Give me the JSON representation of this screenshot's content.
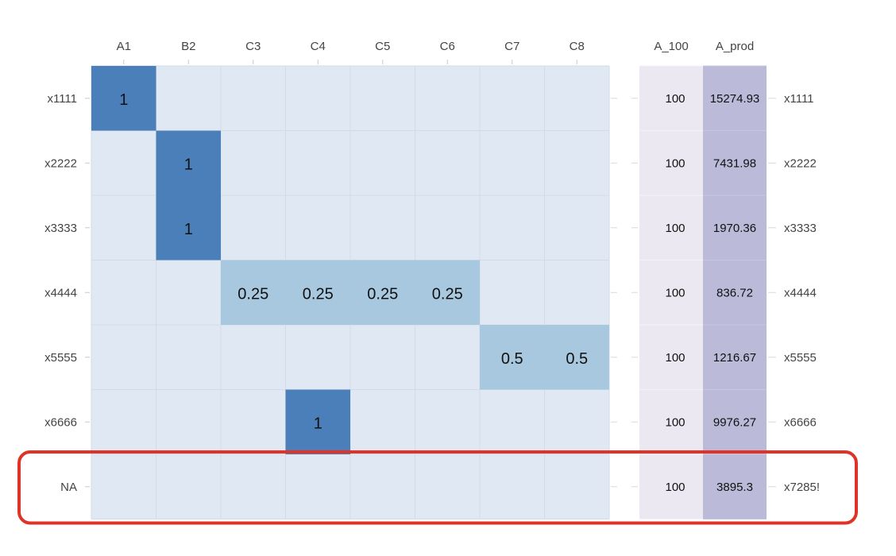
{
  "chart_data": {
    "type": "heatmap",
    "columns": [
      "A1",
      "B2",
      "C3",
      "C4",
      "C5",
      "C6",
      "C7",
      "C8"
    ],
    "rows": [
      "x1111",
      "x2222",
      "x3333",
      "x4444",
      "x5555",
      "x6666",
      "NA"
    ],
    "values": [
      [
        1,
        null,
        null,
        null,
        null,
        null,
        null,
        null
      ],
      [
        null,
        1,
        null,
        null,
        null,
        null,
        null,
        null
      ],
      [
        null,
        1,
        null,
        null,
        null,
        null,
        null,
        null
      ],
      [
        null,
        null,
        0.25,
        0.25,
        0.25,
        0.25,
        null,
        null
      ],
      [
        null,
        null,
        null,
        null,
        null,
        null,
        0.5,
        0.5
      ],
      [
        null,
        null,
        null,
        1,
        null,
        null,
        null,
        null
      ],
      [
        null,
        null,
        null,
        null,
        null,
        null,
        null,
        null
      ]
    ],
    "side_columns": [
      {
        "header": "A_100",
        "values": [
          "100",
          "100",
          "100",
          "100",
          "100",
          "100",
          "100"
        ]
      },
      {
        "header": "A_prod",
        "values": [
          "15274.93",
          "7431.98",
          "1970.36",
          "836.72",
          "1216.67",
          "9976.27",
          "3895.3"
        ]
      }
    ],
    "right_labels": [
      "x1111",
      "x2222",
      "x3333",
      "x4444",
      "x5555",
      "x6666",
      "x7285!"
    ],
    "highlight_row": "NA"
  },
  "colors": {
    "empty": "#e0e8f4",
    "value_1": "#4a7fba",
    "value_0.5": "#a7c8de",
    "value_0.25": "#a7c8de",
    "a100_column": "#ebe8f1",
    "aprod_column": "#bcbad9",
    "highlight": "#e03328"
  }
}
